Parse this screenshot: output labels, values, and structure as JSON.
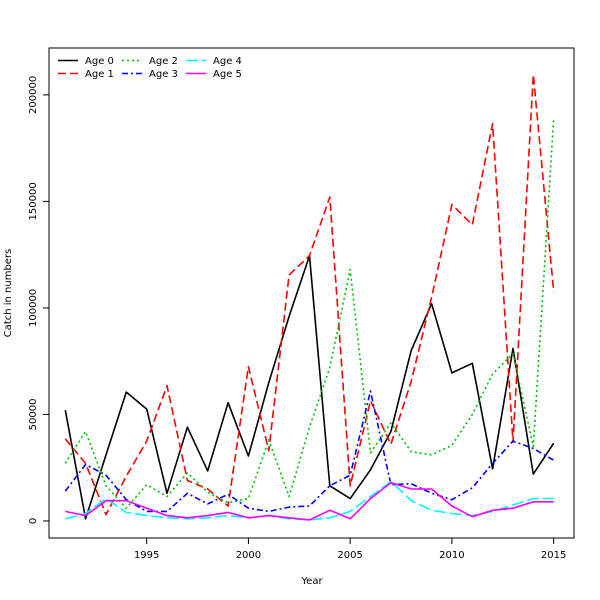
{
  "chart_data": {
    "type": "line",
    "title": "",
    "xlabel": "Year",
    "ylabel": "Catch in numbers",
    "xlim": [
      1990.2,
      2016
    ],
    "ylim": [
      -8000,
      222000
    ],
    "x_ticks": [
      1995,
      2000,
      2005,
      2010,
      2015
    ],
    "y_ticks": [
      0,
      50000,
      100000,
      150000,
      200000
    ],
    "grid": false,
    "legend_position": "top-left",
    "x": [
      1991,
      1992,
      1993,
      1994,
      1995,
      1996,
      1997,
      1998,
      1999,
      2000,
      2001,
      2002,
      2003,
      2004,
      2005,
      2006,
      2007,
      2008,
      2009,
      2010,
      2011,
      2012,
      2013,
      2014,
      2015
    ],
    "series": [
      {
        "name": "Age 0",
        "color": "#000000",
        "dash": "",
        "values": [
          52000,
          1000,
          31000,
          60500,
          52500,
          13000,
          44000,
          23500,
          55500,
          30500,
          65000,
          96000,
          124500,
          16500,
          10500,
          24000,
          42000,
          80000,
          102000,
          69500,
          74000,
          24500,
          81000,
          22000,
          36500
        ]
      },
      {
        "name": "Age 1",
        "color": "#ff0000",
        "dash": "8,4",
        "values": [
          38500,
          27000,
          3000,
          21000,
          37500,
          63500,
          19000,
          15000,
          7000,
          72500,
          33000,
          115500,
          124500,
          152000,
          16500,
          56500,
          36000,
          65500,
          105000,
          148500,
          139000,
          186500,
          37000,
          209500,
          107500
        ]
      },
      {
        "name": "Age 2",
        "color": "#00c000",
        "dash": "2,3",
        "values": [
          27000,
          42000,
          16500,
          6000,
          17000,
          11500,
          22500,
          13500,
          8500,
          10500,
          38000,
          11500,
          44000,
          72000,
          118000,
          32000,
          46000,
          32500,
          31000,
          35500,
          50000,
          69000,
          78500,
          35000,
          189000
        ]
      },
      {
        "name": "Age 3",
        "color": "#0000ff",
        "dash": "6,3,2,3",
        "values": [
          14000,
          26500,
          21500,
          10000,
          4500,
          4500,
          13000,
          8000,
          12500,
          6000,
          4500,
          6500,
          7000,
          16500,
          21500,
          61000,
          17000,
          17500,
          13000,
          10000,
          15500,
          27000,
          37500,
          34000,
          28500
        ]
      },
      {
        "name": "Age 4",
        "color": "#00ffff",
        "dash": "12,4",
        "values": [
          1000,
          3500,
          10500,
          4000,
          2500,
          1500,
          1000,
          1500,
          2500,
          1500,
          2500,
          1000,
          500,
          1500,
          4500,
          11500,
          18500,
          9500,
          5000,
          3500,
          2500,
          4500,
          7500,
          10500,
          10500
        ]
      },
      {
        "name": "Age 5",
        "color": "#ff00ff",
        "dash": "",
        "values": [
          4500,
          2500,
          9500,
          9500,
          6000,
          2500,
          1500,
          2500,
          4000,
          1500,
          2500,
          1500,
          500,
          5000,
          1000,
          10500,
          18000,
          15000,
          15000,
          7000,
          2000,
          5000,
          6000,
          9000,
          9000
        ]
      }
    ]
  }
}
